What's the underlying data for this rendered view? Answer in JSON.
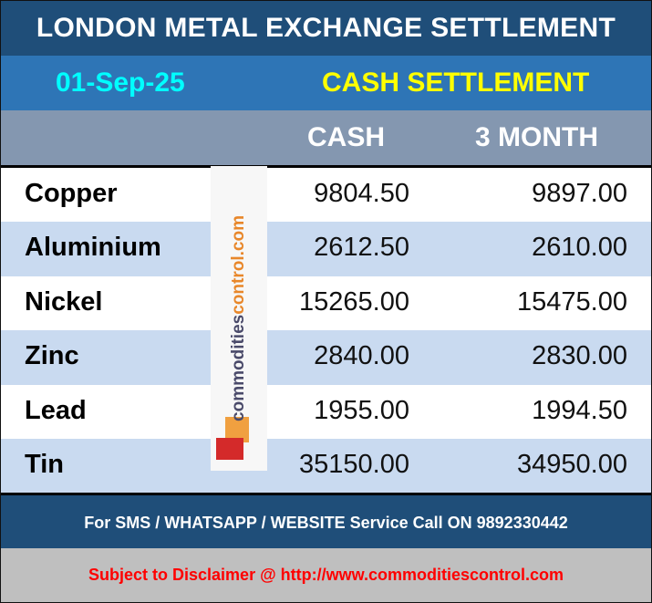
{
  "title": "LONDON METAL EXCHANGE SETTLEMENT",
  "date": "01-Sep-25",
  "settlement_type": "CASH SETTLEMENT",
  "columns": [
    "CASH",
    "3 MONTH"
  ],
  "rows": [
    {
      "metal": "Copper",
      "cash": "9804.50",
      "three_month": "9897.00"
    },
    {
      "metal": "Aluminium",
      "cash": "2612.50",
      "three_month": "2610.00"
    },
    {
      "metal": "Nickel",
      "cash": "15265.00",
      "three_month": "15475.00"
    },
    {
      "metal": "Zinc",
      "cash": "2840.00",
      "three_month": "2830.00"
    },
    {
      "metal": "Lead",
      "cash": "1955.00",
      "three_month": "1994.50"
    },
    {
      "metal": "Tin",
      "cash": "35150.00",
      "three_month": "34950.00"
    }
  ],
  "logo": {
    "text_a": "commodities",
    "text_b": "control.com"
  },
  "footer": {
    "service": "For SMS / WHATSAPP / WEBSITE Service Call  ON  9892330442",
    "disclaimer": "Subject to Disclaimer @  http://www.commoditiescontrol.com"
  },
  "colors": {
    "title_bg": "#1f4e79",
    "sub_bg": "#2e75b6",
    "header_bg": "#8497b0",
    "alt_row": "#c9daf0",
    "date": "#00ffff",
    "settlement": "#ffff00",
    "disclaimer": "#ff0000"
  }
}
